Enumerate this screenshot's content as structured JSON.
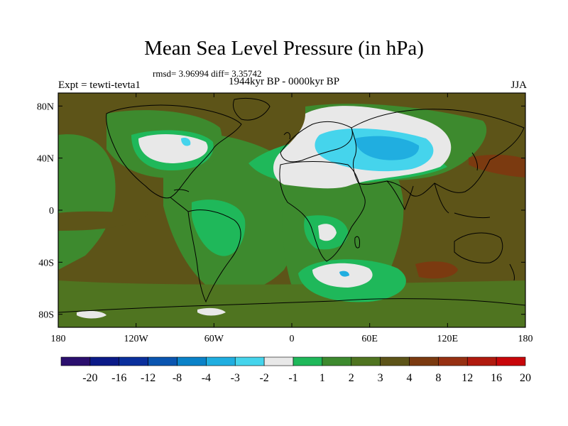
{
  "title": "Mean Sea Level Pressure (in hPa)",
  "stats": "rmsd= 3.96994 diff= 3.35742",
  "left_label": "Expt = tewti-tevta1",
  "center_label": "1944kyr BP - 0000kyr BP",
  "right_label": "JJA",
  "map": {
    "lon_range": [
      -180,
      180
    ],
    "lat_range": [
      -90,
      90
    ],
    "x_ticks": [
      {
        "value": -180,
        "label": "180"
      },
      {
        "value": -120,
        "label": "120W"
      },
      {
        "value": -60,
        "label": "60W"
      },
      {
        "value": 0,
        "label": "0"
      },
      {
        "value": 60,
        "label": "60E"
      },
      {
        "value": 120,
        "label": "120E"
      },
      {
        "value": 180,
        "label": "180"
      }
    ],
    "y_ticks": [
      {
        "value": 80,
        "label": "80N"
      },
      {
        "value": 40,
        "label": "40N"
      },
      {
        "value": 0,
        "label": "0"
      },
      {
        "value": -40,
        "label": "40S"
      },
      {
        "value": -80,
        "label": "80S"
      }
    ]
  },
  "colorbar": {
    "colors": [
      "#2b0f6e",
      "#0b1a88",
      "#0a2f9c",
      "#0a55b0",
      "#0a82c8",
      "#20aee0",
      "#45d4ec",
      "#e8e8e8",
      "#1fb85a",
      "#3d8a2e",
      "#4f7420",
      "#5d5418",
      "#7b3a10",
      "#963012",
      "#b01a0e",
      "#c8060a"
    ],
    "labels": [
      "-20",
      "-16",
      "-12",
      "-8",
      "-4",
      "-3",
      "-2",
      "-1",
      "1",
      "2",
      "3",
      "4",
      "8",
      "12",
      "16",
      "20"
    ]
  },
  "colors": {
    "background_field": "#5d5418",
    "light_green": "#1fb85a",
    "mid_green": "#3d8a2e",
    "olive": "#4f7420",
    "grey": "#e8e8e8",
    "cyan": "#20aee0",
    "light_cyan": "#45d4ec",
    "red_brown": "#963012",
    "brown": "#7b3a10"
  }
}
